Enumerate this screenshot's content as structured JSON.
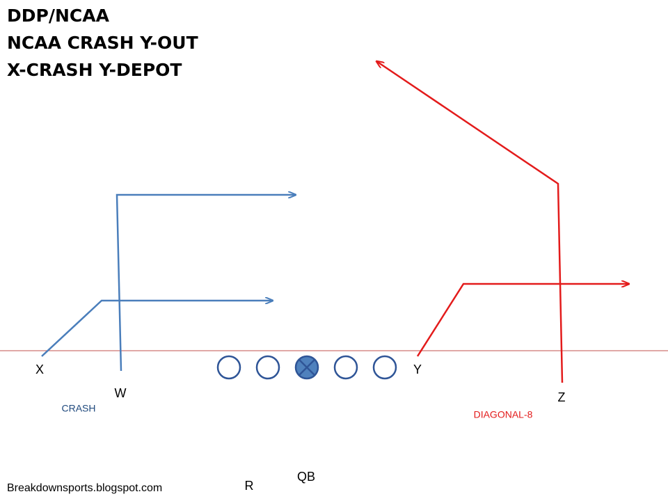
{
  "title": [
    "DDP/NCAA",
    "NCAA CRASH Y-OUT",
    "X-CRASH Y-DEPOT"
  ],
  "players": [
    "X",
    "W",
    "Y",
    "Z",
    "R",
    "QB"
  ],
  "routes": [
    "CRASH",
    "DIAGONAL-8"
  ],
  "footer": "Breakdownsports.blogspot.com"
}
